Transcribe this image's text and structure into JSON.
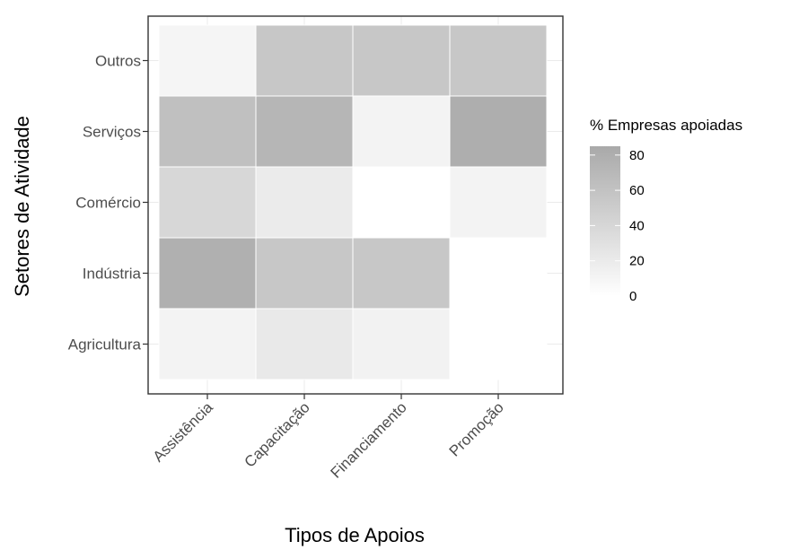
{
  "chart_data": {
    "type": "heatmap",
    "xlabel": "Tipos de Apoios",
    "ylabel": "Setores de Atividade",
    "x_categories": [
      "Assistência",
      "Capacitação",
      "Financiamento",
      "Promoção"
    ],
    "y_categories": [
      "Agricultura",
      "Indústria",
      "Comércio",
      "Serviços",
      "Outros"
    ],
    "values": [
      [
        12,
        22,
        13,
        0
      ],
      [
        78,
        55,
        55,
        0
      ],
      [
        40,
        20,
        0,
        12
      ],
      [
        62,
        72,
        12,
        80
      ],
      [
        10,
        55,
        55,
        55
      ]
    ],
    "legend": {
      "title": "% Empresas apoiadas",
      "range": [
        0,
        85
      ],
      "ticks": [
        80,
        60,
        40,
        20,
        0
      ],
      "low_color": "#ffffff",
      "high_color": "#a9a9a9",
      "position": "right"
    },
    "colors": {
      "panel_border": "#333333",
      "grid": "#ebebeb",
      "tile_border": "#ffffff"
    }
  }
}
